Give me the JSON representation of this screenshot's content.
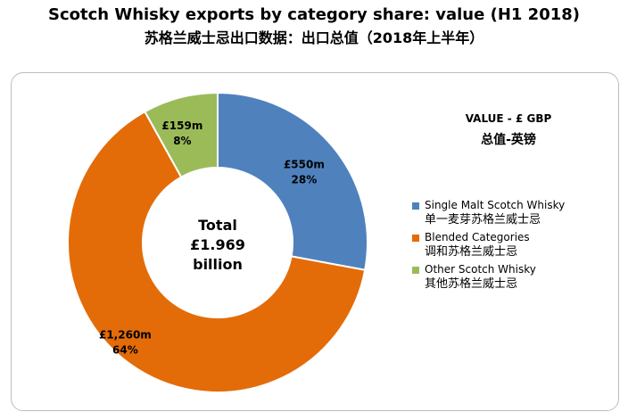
{
  "chart_data": {
    "type": "pie",
    "title": "Scotch Whisky exports by category share: value (H1 2018)",
    "subtitle": "苏格兰威士忌出口数据：出口总值（2018年上半年）",
    "unit_heading": "VALUE - £ GBP",
    "unit_heading_zh": "总值-英镑",
    "center_label": [
      "Total",
      "£1.969",
      "billion"
    ],
    "slices": [
      {
        "name": "Single Malt Scotch Whisky",
        "name_zh": "单一麦芽苏格兰威士忌",
        "value_label": "£550m",
        "value": 550,
        "percent": 28,
        "percent_label": "28%",
        "color": "#4f81bd"
      },
      {
        "name": "Blended Categories",
        "name_zh": "调和苏格兰威士忌",
        "value_label": "£1,260m",
        "value": 1260,
        "percent": 64,
        "percent_label": "64%",
        "color": "#e36c09"
      },
      {
        "name": "Other Scotch Whisky",
        "name_zh": "其他苏格兰威士忌",
        "value_label": "£159m",
        "value": 159,
        "percent": 8,
        "percent_label": "8%",
        "color": "#9bbb59"
      }
    ],
    "legend_position": "right"
  }
}
